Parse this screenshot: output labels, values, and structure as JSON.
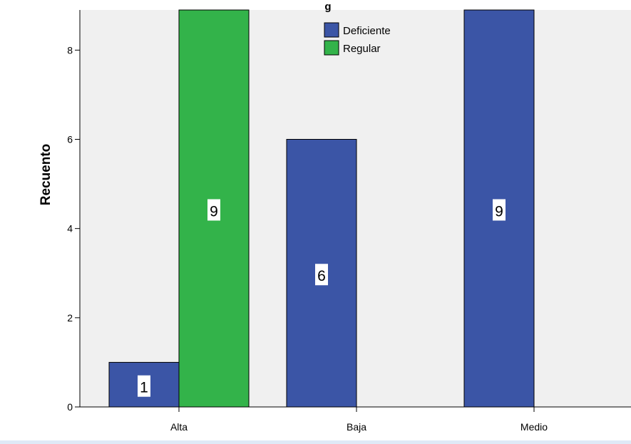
{
  "chart_data": {
    "type": "bar",
    "title": "",
    "xlabel": "",
    "ylabel": "Recuento",
    "ylim": [
      0,
      8.9
    ],
    "yticks": [
      0,
      2,
      4,
      6,
      8
    ],
    "categories": [
      "Alta",
      "Baja",
      "Medio"
    ],
    "legend_title_fragment": "g",
    "legend_position": "top-center",
    "grid": false,
    "series": [
      {
        "name": "Deficiente",
        "color": "#3b55a6",
        "values": [
          1,
          6,
          9
        ],
        "labels": [
          "1",
          "6",
          "9"
        ]
      },
      {
        "name": "Regular",
        "color": "#33b34a",
        "values": [
          9,
          null,
          null
        ],
        "labels": [
          "9",
          null,
          null
        ]
      }
    ]
  }
}
